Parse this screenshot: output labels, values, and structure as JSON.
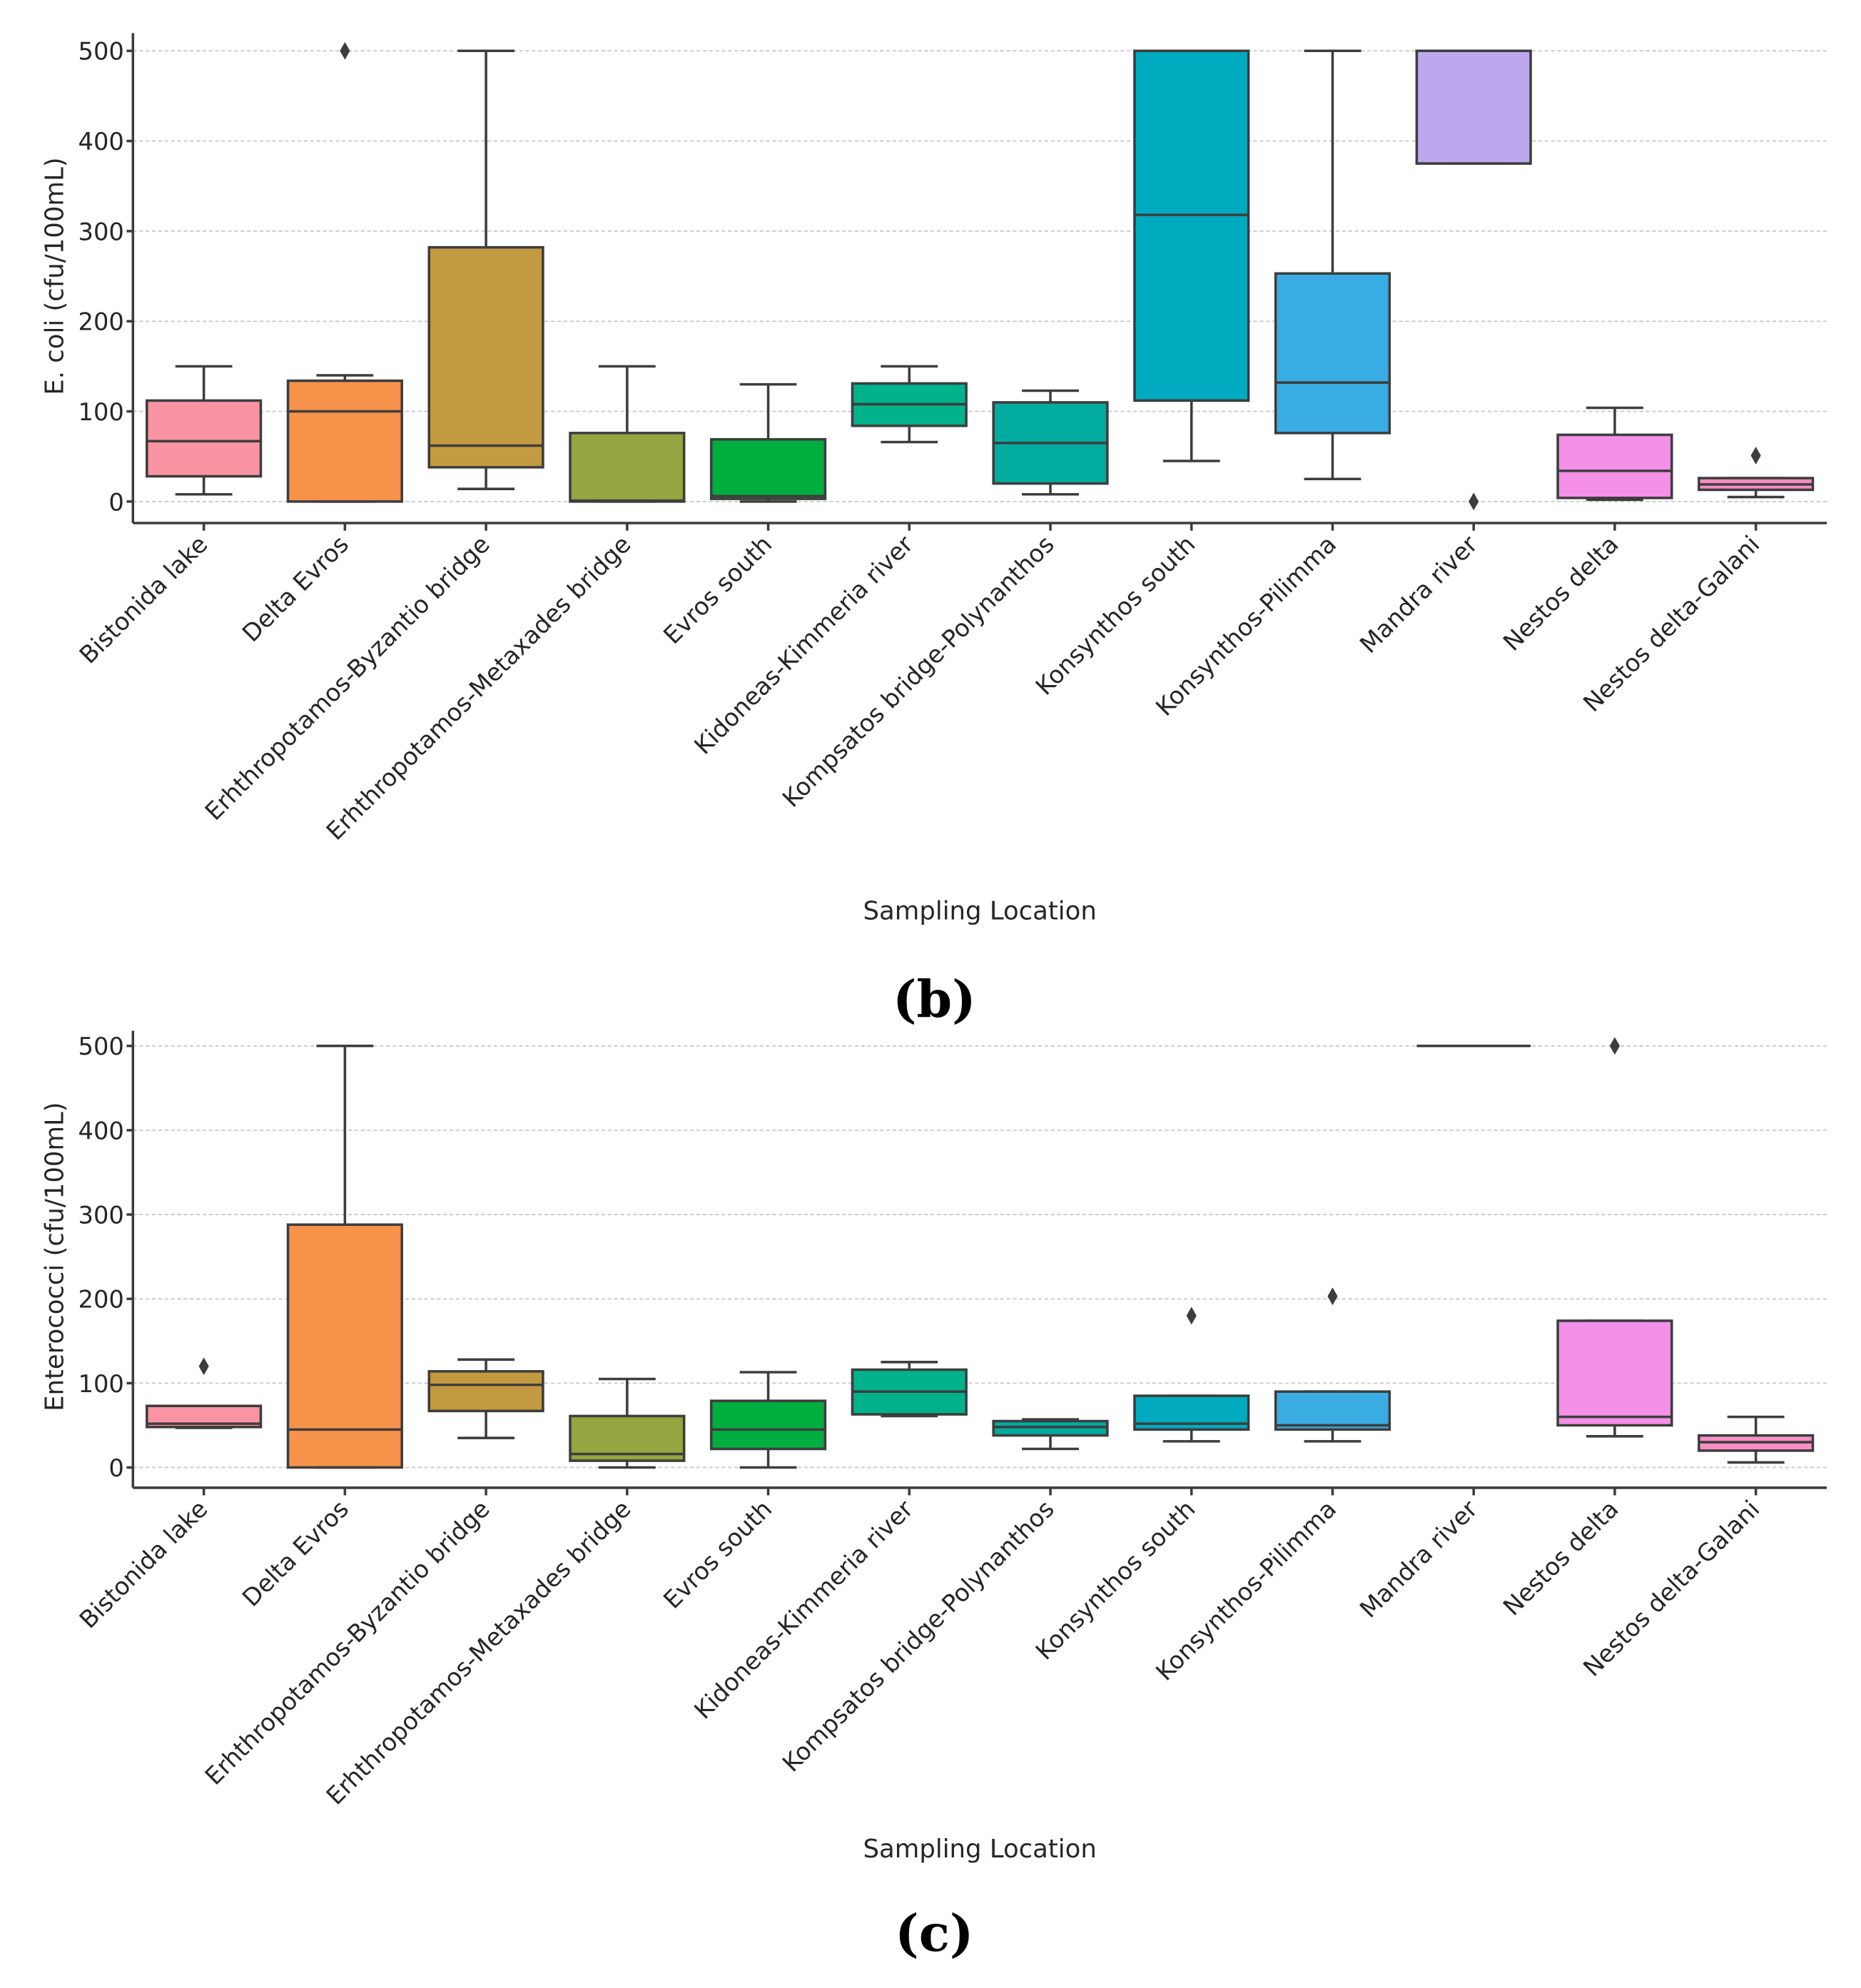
{
  "chart_data": [
    {
      "type": "box",
      "panel_label": "(b)",
      "xlabel": "Sampling Location",
      "ylabel": "E. coli (cfu/100mL)",
      "ylim": [
        -25,
        520
      ],
      "yticks": [
        0,
        100,
        200,
        300,
        400,
        500
      ],
      "grid": true,
      "categories": [
        "Bistonida lake",
        "Delta Evros",
        "Erhthropotamos-Byzantio bridge",
        "Erhthropotamos-Metaxades bridge",
        "Evros south",
        "Kidoneas-Kimmeria river",
        "Kompsatos bridge-Polynanthos",
        "Konsynthos south",
        "Konsynthos-Pilimma",
        "Mandra river",
        "Nestos delta",
        "Nestos delta-Galani"
      ],
      "boxes": [
        {
          "whislo": 8,
          "q1": 28,
          "med": 67,
          "q3": 112,
          "whishi": 150,
          "fliers": []
        },
        {
          "whislo": 0,
          "q1": 0,
          "med": 100,
          "q3": 134,
          "whishi": 140,
          "fliers": [
            500
          ]
        },
        {
          "whislo": 14,
          "q1": 38,
          "med": 62,
          "q3": 282,
          "whishi": 500,
          "fliers": []
        },
        {
          "whislo": 0,
          "q1": 0,
          "med": 1,
          "q3": 76,
          "whishi": 150,
          "fliers": []
        },
        {
          "whislo": 0,
          "q1": 3,
          "med": 6,
          "q3": 69,
          "whishi": 130,
          "fliers": []
        },
        {
          "whislo": 66,
          "q1": 84,
          "med": 108,
          "q3": 131,
          "whishi": 150,
          "fliers": []
        },
        {
          "whislo": 8,
          "q1": 20,
          "med": 65,
          "q3": 110,
          "whishi": 123,
          "fliers": []
        },
        {
          "whislo": 45,
          "q1": 112,
          "med": 318,
          "q3": 500,
          "whishi": 500,
          "fliers": []
        },
        {
          "whislo": 25,
          "q1": 76,
          "med": 132,
          "q3": 253,
          "whishi": 500,
          "fliers": []
        },
        {
          "whislo": 375,
          "q1": 375,
          "med": 500,
          "q3": 500,
          "whishi": 500,
          "fliers": [
            0
          ]
        },
        {
          "whislo": 2,
          "q1": 4,
          "med": 34,
          "q3": 74,
          "whishi": 104,
          "fliers": []
        },
        {
          "whislo": 5,
          "q1": 13,
          "med": 19,
          "q3": 26,
          "whishi": 26,
          "fliers": [
            51
          ]
        }
      ]
    },
    {
      "type": "box",
      "panel_label": "(c)",
      "xlabel": "Sampling Location",
      "ylabel": "Enterococci (cfu/100mL)",
      "ylim": [
        -25,
        520
      ],
      "yticks": [
        0,
        100,
        200,
        300,
        400,
        500
      ],
      "grid": true,
      "categories": [
        "Bistonida lake",
        "Delta Evros",
        "Erhthropotamos-Byzantio bridge",
        "Erhthropotamos-Metaxades bridge",
        "Evros south",
        "Kidoneas-Kimmeria river",
        "Kompsatos bridge-Polynanthos",
        "Konsynthos south",
        "Konsynthos-Pilimma",
        "Mandra river",
        "Nestos delta",
        "Nestos delta-Galani"
      ],
      "boxes": [
        {
          "whislo": 47,
          "q1": 48,
          "med": 52,
          "q3": 73,
          "whishi": 73,
          "fliers": [
            120
          ]
        },
        {
          "whislo": 0,
          "q1": 0,
          "med": 45,
          "q3": 288,
          "whishi": 500,
          "fliers": []
        },
        {
          "whislo": 35,
          "q1": 67,
          "med": 98,
          "q3": 114,
          "whishi": 128,
          "fliers": []
        },
        {
          "whislo": 0,
          "q1": 8,
          "med": 16,
          "q3": 61,
          "whishi": 105,
          "fliers": []
        },
        {
          "whislo": 0,
          "q1": 22,
          "med": 45,
          "q3": 79,
          "whishi": 113,
          "fliers": []
        },
        {
          "whislo": 61,
          "q1": 63,
          "med": 90,
          "q3": 116,
          "whishi": 125,
          "fliers": []
        },
        {
          "whislo": 22,
          "q1": 38,
          "med": 48,
          "q3": 55,
          "whishi": 57,
          "fliers": []
        },
        {
          "whislo": 31,
          "q1": 45,
          "med": 52,
          "q3": 85,
          "whishi": 85,
          "fliers": [
            180
          ]
        },
        {
          "whislo": 31,
          "q1": 45,
          "med": 50,
          "q3": 90,
          "whishi": 90,
          "fliers": [
            203
          ]
        },
        {
          "whislo": 500,
          "q1": 500,
          "med": 500,
          "q3": 500,
          "whishi": 500,
          "fliers": []
        },
        {
          "whislo": 37,
          "q1": 50,
          "med": 60,
          "q3": 174,
          "whishi": 174,
          "fliers": [
            500
          ]
        },
        {
          "whislo": 6,
          "q1": 20,
          "med": 30,
          "q3": 38,
          "whishi": 60,
          "fliers": []
        }
      ]
    }
  ],
  "colors": [
    "#fb94a2",
    "#f7924a",
    "#c39a3f",
    "#95a53f",
    "#00ae40",
    "#00b28c",
    "#00aba0",
    "#00aabf",
    "#39ade3",
    "#bea8ed",
    "#f590e8",
    "#f58fc4"
  ]
}
